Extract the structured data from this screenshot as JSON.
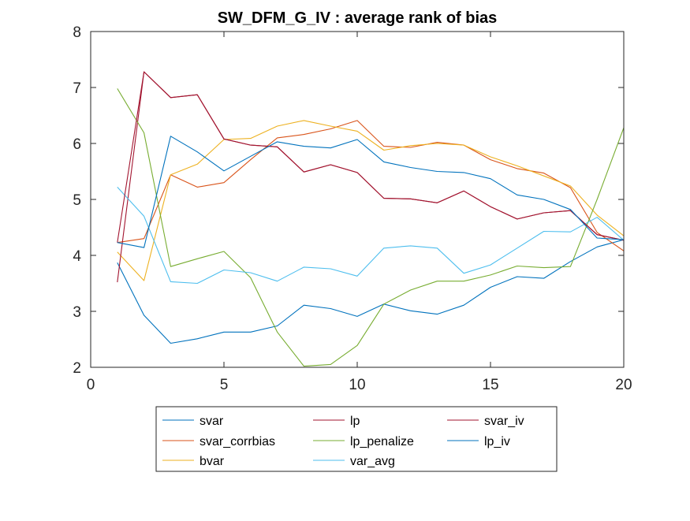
{
  "chart_data": {
    "type": "line",
    "title": "SW_DFM_G_IV : average rank of bias",
    "xlabel": "",
    "ylabel": "",
    "xlim": [
      0,
      20
    ],
    "ylim": [
      2,
      8
    ],
    "xticks": [
      0,
      5,
      10,
      15,
      20
    ],
    "yticks": [
      2,
      3,
      4,
      5,
      6,
      7,
      8
    ],
    "x": [
      1,
      2,
      3,
      4,
      5,
      6,
      7,
      8,
      9,
      10,
      11,
      12,
      13,
      14,
      15,
      16,
      17,
      18,
      19,
      20
    ],
    "grid": false,
    "legend_position": "bottom-outside",
    "series": [
      {
        "name": "svar",
        "color": "#0072BD",
        "values": [
          3.87,
          2.93,
          2.43,
          2.51,
          2.63,
          2.63,
          2.74,
          3.11,
          3.05,
          2.91,
          3.13,
          3.01,
          2.95,
          3.11,
          3.43,
          3.62,
          3.59,
          3.89,
          4.15,
          4.28
        ]
      },
      {
        "name": "svar_corrbias",
        "color": "#D95319",
        "values": [
          4.23,
          4.3,
          5.44,
          5.22,
          5.3,
          5.71,
          6.1,
          6.16,
          6.26,
          6.41,
          5.95,
          5.93,
          6.02,
          5.97,
          5.71,
          5.55,
          5.47,
          5.21,
          4.41,
          4.08
        ]
      },
      {
        "name": "bvar",
        "color": "#EDB120",
        "values": [
          4.06,
          3.55,
          5.44,
          5.63,
          6.07,
          6.09,
          6.31,
          6.41,
          6.31,
          6.22,
          5.88,
          5.96,
          6.0,
          5.97,
          5.76,
          5.6,
          5.42,
          5.24,
          4.72,
          4.35
        ]
      },
      {
        "name": "lp",
        "color": "#A2142F",
        "values": [
          3.52,
          7.28,
          6.82,
          6.87,
          6.08,
          5.97,
          5.94,
          5.49,
          5.62,
          5.48,
          5.02,
          5.01,
          4.94,
          5.15,
          4.87,
          4.65,
          4.76,
          4.8,
          4.37,
          4.27
        ]
      },
      {
        "name": "lp_penalize",
        "color": "#77AC30",
        "values": [
          6.98,
          6.19,
          3.8,
          3.94,
          4.07,
          3.6,
          2.63,
          2.02,
          2.05,
          2.39,
          3.13,
          3.38,
          3.54,
          3.54,
          3.65,
          3.81,
          3.78,
          3.8,
          5.0,
          6.28
        ]
      },
      {
        "name": "var_avg",
        "color": "#4DBEEE",
        "values": [
          5.22,
          4.7,
          3.53,
          3.5,
          3.74,
          3.69,
          3.54,
          3.79,
          3.76,
          3.63,
          4.13,
          4.17,
          4.13,
          3.68,
          3.83,
          4.13,
          4.43,
          4.42,
          4.68,
          4.27
        ]
      },
      {
        "name": "svar_iv",
        "color": "#A2142F",
        "values": [
          4.23,
          7.28,
          6.82,
          6.87,
          6.08,
          5.97,
          5.94,
          5.49,
          5.62,
          5.48,
          5.02,
          5.01,
          4.94,
          5.15,
          4.87,
          4.65,
          4.76,
          4.8,
          4.37,
          4.27
        ]
      },
      {
        "name": "lp_iv",
        "color": "#0072BD",
        "values": [
          4.23,
          4.14,
          6.13,
          5.85,
          5.51,
          5.77,
          6.03,
          5.95,
          5.92,
          6.07,
          5.67,
          5.57,
          5.5,
          5.48,
          5.37,
          5.08,
          5.0,
          4.82,
          4.31,
          4.28
        ]
      }
    ],
    "legend": {
      "columns": 3,
      "entries": [
        "svar",
        "lp",
        "svar_iv",
        "svar_corrbias",
        "lp_penalize",
        "lp_iv",
        "bvar",
        "var_avg"
      ],
      "colors": [
        "#0072BD",
        "#A2142F",
        "#A2142F",
        "#D95319",
        "#77AC30",
        "#0072BD",
        "#EDB120",
        "#4DBEEE"
      ]
    }
  }
}
